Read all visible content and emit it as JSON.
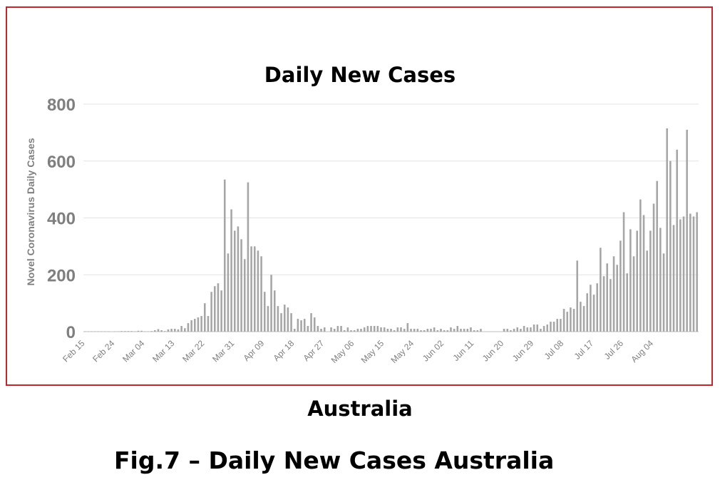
{
  "chart_data": {
    "type": "bar",
    "title": "Daily New Cases",
    "ylabel": "Novel Coronavirus Daily Cases",
    "xlabel": "",
    "ylim": [
      0,
      800
    ],
    "y_ticks": [
      "0",
      "200",
      "400",
      "600",
      "800"
    ],
    "grid": "horizontal",
    "x_tick_labels": [
      "Feb 15",
      "Feb 24",
      "Mar 04",
      "Mar 13",
      "Mar 22",
      "Mar 31",
      "Apr 09",
      "Apr 18",
      "Apr 27",
      "May 06",
      "May 15",
      "May 24",
      "Jun 02",
      "Jun 11",
      "Jun 20",
      "Jun 29",
      "Jul 08",
      "Jul 17",
      "Jul 26",
      "Aug 04"
    ],
    "series": [
      {
        "values": [
          1,
          1,
          1,
          1,
          1,
          1,
          1,
          1,
          0,
          1,
          1,
          2,
          2,
          2,
          2,
          1,
          3,
          3,
          1,
          1,
          2,
          5,
          9,
          5,
          2,
          8,
          10,
          10,
          8,
          20,
          12,
          30,
          40,
          45,
          50,
          55,
          100,
          55,
          140,
          160,
          170,
          145,
          535,
          275,
          430,
          355,
          370,
          325,
          255,
          525,
          300,
          300,
          285,
          265,
          140,
          90,
          200,
          145,
          90,
          65,
          95,
          85,
          65,
          10,
          45,
          40,
          45,
          20,
          65,
          50,
          20,
          10,
          15,
          0,
          15,
          10,
          20,
          20,
          5,
          15,
          5,
          5,
          10,
          10,
          15,
          20,
          20,
          20,
          20,
          15,
          15,
          10,
          10,
          5,
          15,
          15,
          10,
          30,
          10,
          10,
          10,
          5,
          5,
          10,
          10,
          15,
          5,
          10,
          5,
          5,
          15,
          10,
          20,
          10,
          10,
          10,
          15,
          5,
          5,
          10,
          0,
          0,
          0,
          0,
          0,
          0,
          10,
          10,
          5,
          10,
          15,
          10,
          20,
          15,
          15,
          25,
          25,
          10,
          20,
          25,
          35,
          35,
          45,
          45,
          80,
          70,
          85,
          80,
          250,
          105,
          90,
          135,
          165,
          130,
          170,
          295,
          195,
          240,
          185,
          265,
          235,
          320,
          420,
          205,
          360,
          265,
          355,
          465,
          410,
          285,
          355,
          450,
          530,
          365,
          275,
          715,
          600,
          375,
          640,
          395,
          405,
          710,
          415,
          405,
          420
        ]
      }
    ]
  },
  "figure": {
    "subtitle": "Australia",
    "caption": "Fig.7 – Daily New Cases Australia"
  },
  "colors": {
    "bar": "#a6a6a6",
    "frame": "#c0272d",
    "grid": "#e3e3e3",
    "axis_text": "#7f7f7f"
  }
}
